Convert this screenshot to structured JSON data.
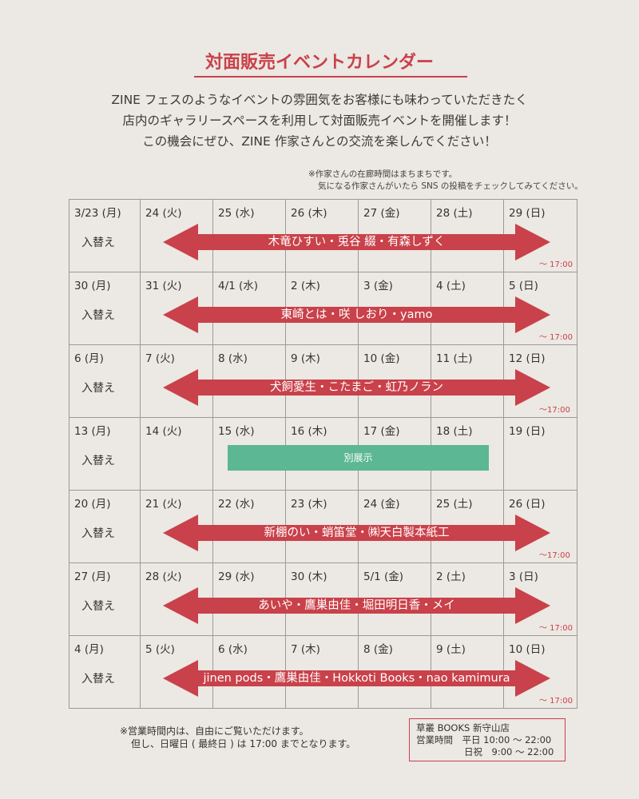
{
  "title": "対面販売イベントカレンダー",
  "intro": [
    "ZINE フェスのようなイベントの雰囲気をお客様にも味わっていただきたく",
    "店内のギャラリースペースを利用して対面販売イベントを開催します！",
    "この機会にぜひ、ZINE 作家さんとの交流を楽しんでください！"
  ],
  "note": [
    "※作家さんの在廊時間はまちまちです。",
    "気になる作家さんがいたら SNS の投稿をチェックしてみてください。"
  ],
  "swap_label": "入替え",
  "weeks": [
    {
      "days": [
        "3/23 (月)",
        "24 (火)",
        "25 (水)",
        "26 (木)",
        "27 (金)",
        "28 (土)",
        "29 (日)"
      ],
      "event": "木竜ひすい・兎谷 綴・有森しずく",
      "closing": "～ 17:00"
    },
    {
      "days": [
        "30 (月)",
        "31 (火)",
        "4/1 (水)",
        "2 (木)",
        "3 (金)",
        "4 (土)",
        "5 (日)"
      ],
      "event": "東崎とは・咲 しおり・yamo",
      "closing": "～ 17:00"
    },
    {
      "days": [
        "6 (月)",
        "7 (火)",
        "8 (水)",
        "9 (木)",
        "10 (金)",
        "11 (土)",
        "12 (日)"
      ],
      "event": "犬飼愛生・こたまご・虹乃ノラン",
      "closing": "～17:00"
    },
    {
      "days": [
        "13 (月)",
        "14 (火)",
        "15 (水)",
        "16 (木)",
        "17 (金)",
        "18 (土)",
        "19 (日)"
      ],
      "other_exhibit": "別展示"
    },
    {
      "days": [
        "20 (月)",
        "21 (火)",
        "22 (水)",
        "23 (木)",
        "24 (金)",
        "25 (土)",
        "26 (日)"
      ],
      "event": "新棚のい・蛸笛堂・㈱天白製本紙工",
      "closing": "～17:00"
    },
    {
      "days": [
        "27 (月)",
        "28 (火)",
        "29 (水)",
        "30 (木)",
        "5/1 (金)",
        "2 (土)",
        "3 (日)"
      ],
      "event": "あいや・鷹巣由佳・堀田明日香・メイ",
      "closing": "～ 17:00"
    },
    {
      "days": [
        "4 (月)",
        "5 (火)",
        "6 (水)",
        "7 (木)",
        "8 (金)",
        "9 (土)",
        "10 (日)"
      ],
      "event": "jinen pods・鷹巣由佳・Hokkoti Books・nao kamimura",
      "closing": "～ 17:00"
    }
  ],
  "footer_note": [
    "※営業時間内は、自由にご覧いただけます。",
    "但し、日曜日 ( 最終日 ) は 17:00 までとなります。"
  ],
  "store": {
    "name": "草叢 BOOKS 新守山店",
    "hours_label": "営業時間",
    "weekday": "平日 10:00 ～ 22:00",
    "holiday": "日祝　9:00 ～ 22:00"
  },
  "colors": {
    "accent": "#c9414a",
    "green": "#5cb794",
    "background": "#ece8e3"
  }
}
